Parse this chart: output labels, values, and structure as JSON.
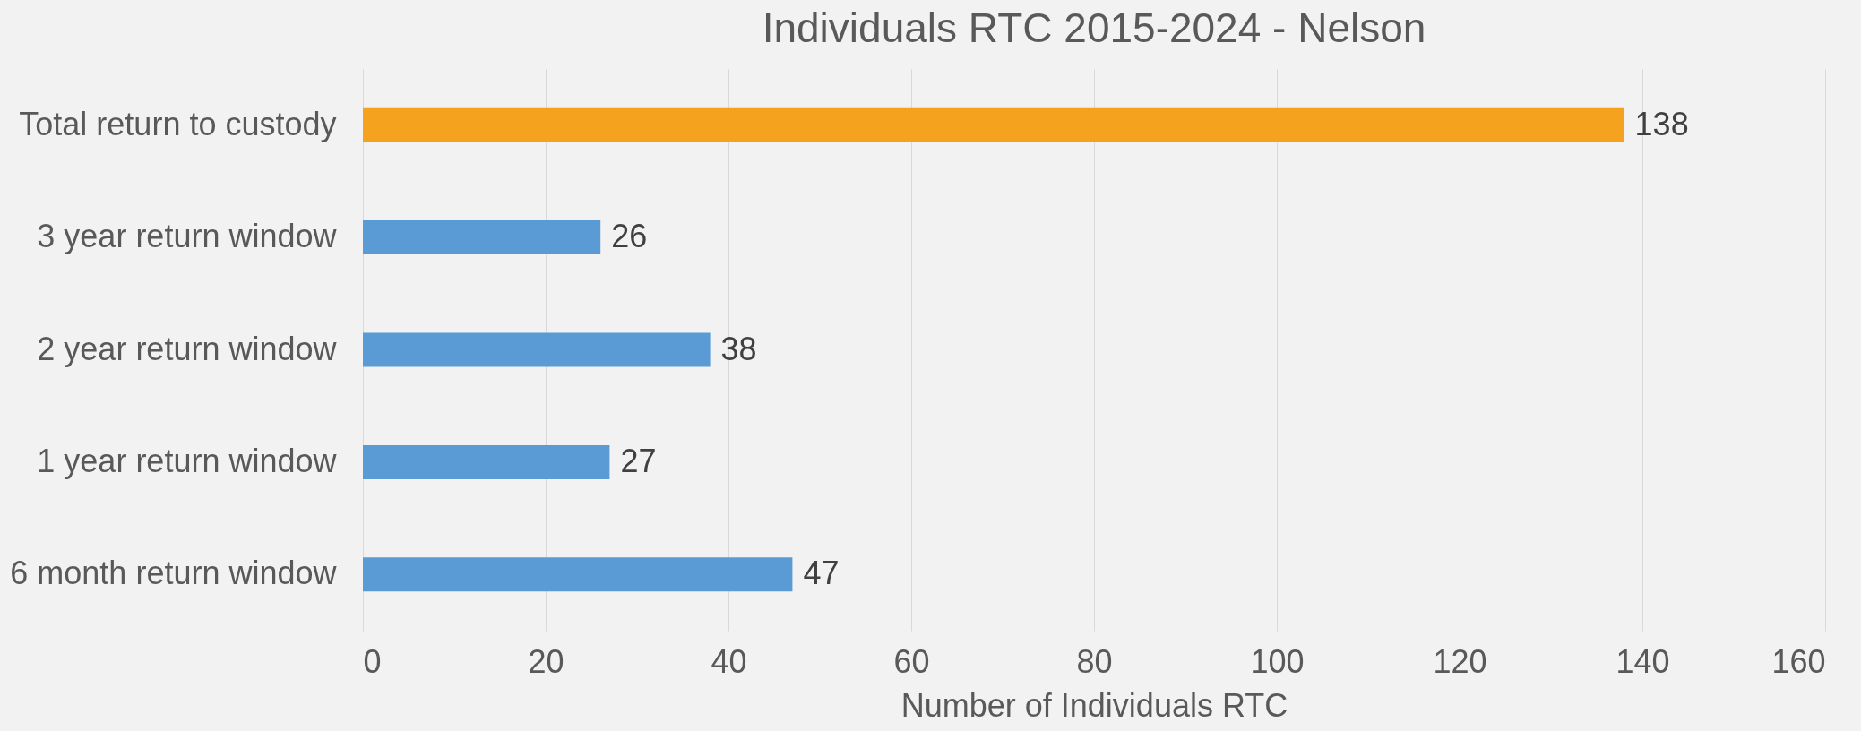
{
  "chart_data": {
    "type": "bar",
    "orientation": "horizontal",
    "title": "Individuals RTC 2015-2024 - Nelson",
    "xlabel": "Number of Individuals RTC",
    "categories": [
      "Total return to custody",
      "3 year return window",
      "2 year return window",
      "1 year return window",
      "6 month return window"
    ],
    "values": [
      138,
      26,
      38,
      27,
      47
    ],
    "colors": [
      "#f5a31f",
      "#5b9bd5",
      "#5b9bd5",
      "#5b9bd5",
      "#5b9bd5"
    ],
    "xlim": [
      0,
      160
    ],
    "xticks": [
      0,
      20,
      40,
      60,
      80,
      100,
      120,
      140,
      160
    ],
    "grid": "x",
    "data_labels": true
  }
}
